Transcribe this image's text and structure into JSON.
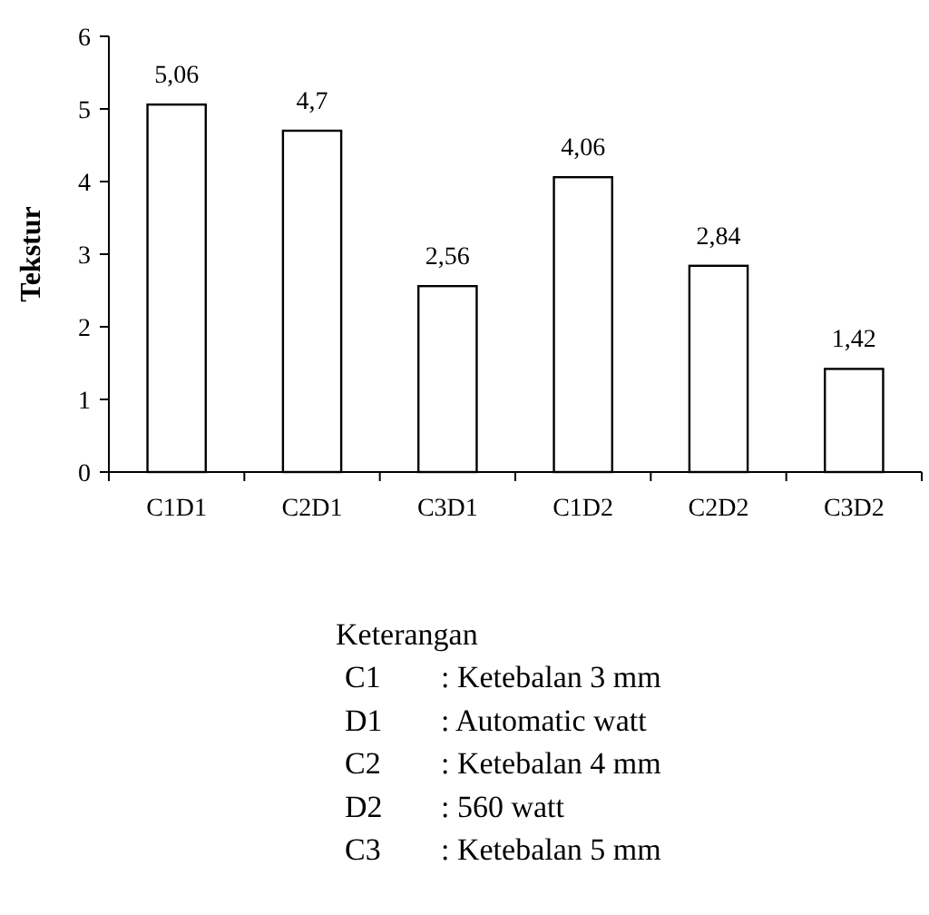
{
  "chart_data": {
    "type": "bar",
    "ylabel": "Tekstur",
    "categories": [
      "C1D1",
      "C2D1",
      "C3D1",
      "C1D2",
      "C2D2",
      "C3D2"
    ],
    "values": [
      5.06,
      4.7,
      2.56,
      4.06,
      2.84,
      1.42
    ],
    "value_labels": [
      "5,06",
      "4,7",
      "2,56",
      "4,06",
      "2,84",
      "1,42"
    ],
    "color": "#ffffff",
    "ylim": [
      0,
      6
    ],
    "yticks": [
      0,
      1,
      2,
      3,
      4,
      5,
      6
    ],
    "grid": false,
    "annotations": [
      "Keterangan",
      "C1 : Ketebalan 3 mm",
      "D1 : Automatic watt",
      "C2 : Ketebalan 4 mm",
      "D2 : 560 watt",
      "C3 : Ketebalan 5 mm"
    ]
  }
}
